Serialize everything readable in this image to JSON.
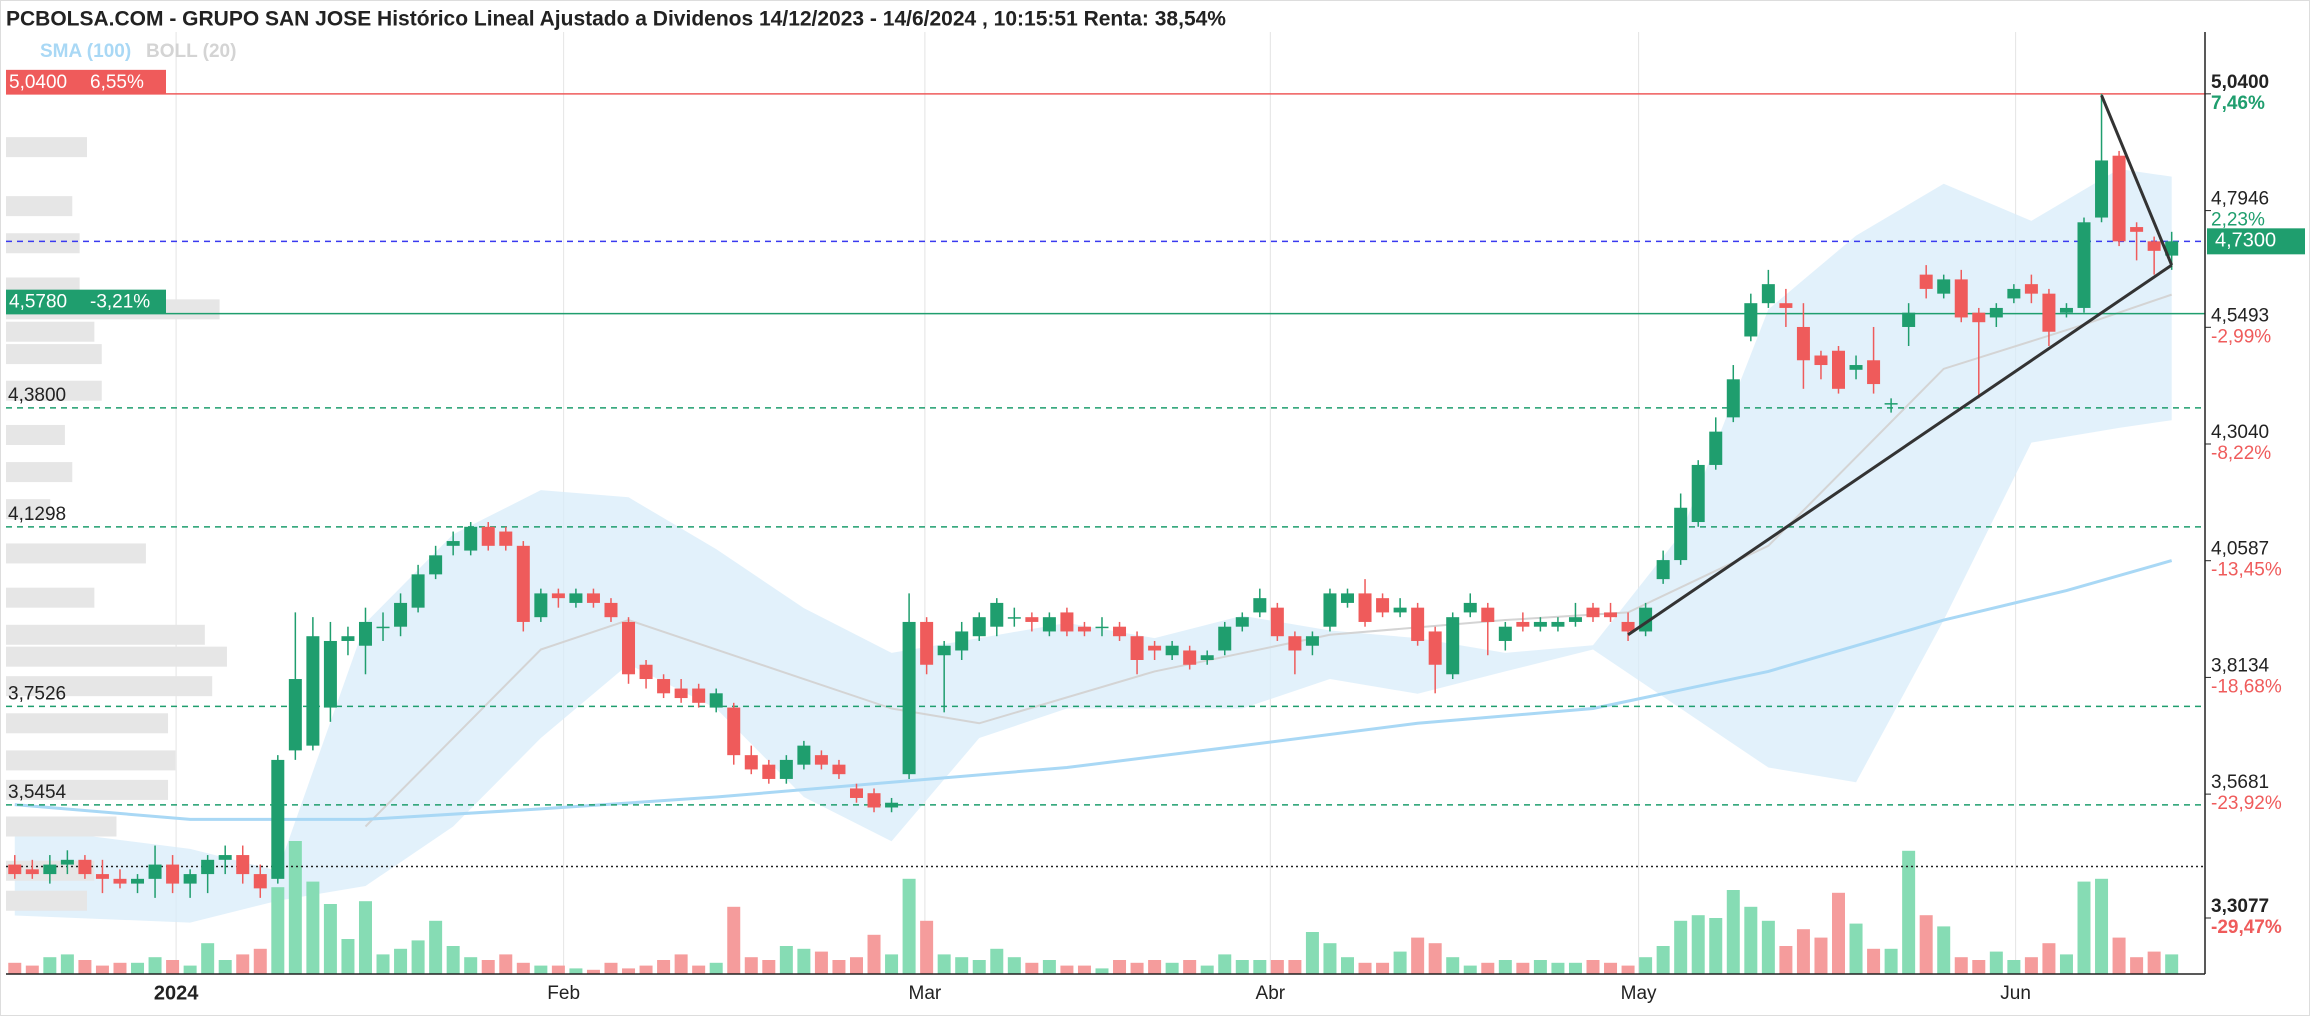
{
  "chart_data": {
    "type": "candlestick",
    "title": "PCBOLSA.COM - GRUPO SAN JOSE Histórico Lineal Ajustado a Dividenos 14/12/2023 - 14/6/2024 , 10:15:51 Renta: 38,54%",
    "legend": [
      "SMA (100)",
      "BOLL (20)"
    ],
    "colors": {
      "up": "#1f9e6e",
      "down": "#ef5b5b",
      "vol_up": "#86dcb4",
      "vol_down": "#f59c9c",
      "sma": "#a9d8f5",
      "band": "#d8ecfa",
      "band_mid": "#d4d4d4",
      "profile": "#e6e6e6",
      "trend": "#333333"
    },
    "xlim": [
      -0.5,
      124.9
    ],
    "ylim": [
      3.19,
      5.17
    ],
    "xticks": [
      {
        "value": 9.2,
        "label": "2024"
      },
      {
        "value": 31.3,
        "label": "Feb"
      },
      {
        "value": 51.9,
        "label": "Mar"
      },
      {
        "value": 71.6,
        "label": "Abr"
      },
      {
        "value": 92.6,
        "label": "May"
      },
      {
        "value": 114.1,
        "label": "Jun"
      }
    ],
    "yticks": [
      {
        "value": 5.04,
        "label": "5,0400"
      },
      {
        "value": 4.7946,
        "label": "4,7946"
      },
      {
        "value": 4.5493,
        "label": "4,5493"
      },
      {
        "value": 4.304,
        "label": "4,3040"
      },
      {
        "value": 4.0587,
        "label": "4,0587"
      },
      {
        "value": 3.8134,
        "label": "3,8134"
      },
      {
        "value": 3.5681,
        "label": "3,5681"
      },
      {
        "value": 3.3077,
        "label": "3,3077"
      }
    ],
    "ytick_pct_labels": [
      "7,46%",
      "2,23%",
      "-2,99%",
      "-8,22%",
      "-13,45%",
      "-18,68%",
      "-23,92%",
      "-29,47%"
    ],
    "last_price": {
      "value": 4.73,
      "label": "4,7300"
    },
    "levels": [
      {
        "value": 5.04,
        "label": "5,0400",
        "pct": "6,55%",
        "color": "#ef5b5b",
        "style": "solid",
        "box": true
      },
      {
        "value": 4.73,
        "color": "#3a3af0",
        "style": "dashed"
      },
      {
        "value": 4.578,
        "label": "4,5780",
        "pct": "-3,21%",
        "color": "#1f9e6e",
        "style": "solid",
        "box": true
      },
      {
        "value": 4.38,
        "label": "4,3800",
        "color": "#1f9e6e",
        "style": "dashed"
      },
      {
        "value": 4.1298,
        "label": "4,1298",
        "color": "#1f9e6e",
        "style": "dashed"
      },
      {
        "value": 3.7526,
        "label": "3,7526",
        "color": "#1f9e6e",
        "style": "dashed"
      },
      {
        "value": 3.5454,
        "label": "3,5454",
        "color": "#1f9e6e",
        "style": "dashed"
      },
      {
        "value": 3.416,
        "color": "#222222",
        "style": "dotted"
      }
    ],
    "ohlc": [
      [
        3.42,
        3.44,
        3.39,
        3.4
      ],
      [
        3.41,
        3.43,
        3.39,
        3.4
      ],
      [
        3.4,
        3.44,
        3.38,
        3.42
      ],
      [
        3.42,
        3.45,
        3.4,
        3.43
      ],
      [
        3.43,
        3.44,
        3.39,
        3.4
      ],
      [
        3.4,
        3.43,
        3.36,
        3.39
      ],
      [
        3.39,
        3.41,
        3.37,
        3.38
      ],
      [
        3.38,
        3.4,
        3.36,
        3.39
      ],
      [
        3.39,
        3.46,
        3.35,
        3.42
      ],
      [
        3.42,
        3.44,
        3.36,
        3.38
      ],
      [
        3.38,
        3.41,
        3.35,
        3.4
      ],
      [
        3.4,
        3.44,
        3.36,
        3.43
      ],
      [
        3.43,
        3.46,
        3.4,
        3.44
      ],
      [
        3.44,
        3.46,
        3.38,
        3.4
      ],
      [
        3.4,
        3.42,
        3.35,
        3.37
      ],
      [
        3.39,
        3.65,
        3.38,
        3.64
      ],
      [
        3.66,
        3.95,
        3.64,
        3.81
      ],
      [
        3.67,
        3.94,
        3.66,
        3.9
      ],
      [
        3.75,
        3.93,
        3.72,
        3.89
      ],
      [
        3.89,
        3.92,
        3.86,
        3.9
      ],
      [
        3.88,
        3.96,
        3.82,
        3.93
      ],
      [
        3.92,
        3.95,
        3.89,
        3.92
      ],
      [
        3.92,
        3.99,
        3.9,
        3.97
      ],
      [
        3.96,
        4.05,
        3.95,
        4.03
      ],
      [
        4.03,
        4.09,
        4.02,
        4.07
      ],
      [
        4.09,
        4.12,
        4.07,
        4.1
      ],
      [
        4.08,
        4.14,
        4.07,
        4.13
      ],
      [
        4.13,
        4.14,
        4.08,
        4.09
      ],
      [
        4.12,
        4.13,
        4.08,
        4.09
      ],
      [
        4.09,
        4.1,
        3.91,
        3.93
      ],
      [
        3.94,
        4.0,
        3.93,
        3.99
      ],
      [
        3.99,
        4.0,
        3.96,
        3.98
      ],
      [
        3.97,
        4.0,
        3.96,
        3.99
      ],
      [
        3.99,
        4.0,
        3.96,
        3.97
      ],
      [
        3.97,
        3.98,
        3.93,
        3.94
      ],
      [
        3.93,
        3.94,
        3.8,
        3.82
      ],
      [
        3.84,
        3.85,
        3.79,
        3.81
      ],
      [
        3.81,
        3.82,
        3.77,
        3.78
      ],
      [
        3.79,
        3.81,
        3.76,
        3.77
      ],
      [
        3.79,
        3.8,
        3.75,
        3.76
      ],
      [
        3.75,
        3.79,
        3.74,
        3.78
      ],
      [
        3.75,
        3.76,
        3.63,
        3.65
      ],
      [
        3.65,
        3.67,
        3.61,
        3.62
      ],
      [
        3.63,
        3.64,
        3.59,
        3.6
      ],
      [
        3.6,
        3.65,
        3.59,
        3.64
      ],
      [
        3.63,
        3.68,
        3.62,
        3.67
      ],
      [
        3.65,
        3.66,
        3.62,
        3.63
      ],
      [
        3.63,
        3.64,
        3.6,
        3.61
      ],
      [
        3.58,
        3.59,
        3.55,
        3.56
      ],
      [
        3.57,
        3.58,
        3.53,
        3.54
      ],
      [
        3.54,
        3.56,
        3.53,
        3.55
      ],
      [
        3.61,
        3.99,
        3.6,
        3.93
      ],
      [
        3.93,
        3.94,
        3.82,
        3.84
      ],
      [
        3.86,
        3.89,
        3.74,
        3.88
      ],
      [
        3.87,
        3.93,
        3.85,
        3.91
      ],
      [
        3.9,
        3.95,
        3.89,
        3.94
      ],
      [
        3.92,
        3.98,
        3.9,
        3.97
      ],
      [
        3.94,
        3.96,
        3.92,
        3.94
      ],
      [
        3.94,
        3.95,
        3.91,
        3.93
      ],
      [
        3.91,
        3.95,
        3.9,
        3.94
      ],
      [
        3.95,
        3.96,
        3.9,
        3.91
      ],
      [
        3.92,
        3.93,
        3.9,
        3.91
      ],
      [
        3.92,
        3.94,
        3.9,
        3.92
      ],
      [
        3.92,
        3.93,
        3.89,
        3.9
      ],
      [
        3.9,
        3.91,
        3.82,
        3.85
      ],
      [
        3.88,
        3.89,
        3.85,
        3.87
      ],
      [
        3.86,
        3.89,
        3.85,
        3.88
      ],
      [
        3.87,
        3.88,
        3.83,
        3.84
      ],
      [
        3.85,
        3.87,
        3.84,
        3.86
      ],
      [
        3.87,
        3.93,
        3.86,
        3.92
      ],
      [
        3.92,
        3.95,
        3.91,
        3.94
      ],
      [
        3.95,
        4.0,
        3.94,
        3.98
      ],
      [
        3.96,
        3.97,
        3.89,
        3.9
      ],
      [
        3.9,
        3.91,
        3.82,
        3.87
      ],
      [
        3.88,
        3.91,
        3.86,
        3.9
      ],
      [
        3.92,
        4.0,
        3.91,
        3.99
      ],
      [
        3.97,
        4.0,
        3.96,
        3.99
      ],
      [
        3.99,
        4.02,
        3.92,
        3.93
      ],
      [
        3.98,
        3.99,
        3.94,
        3.95
      ],
      [
        3.95,
        3.98,
        3.94,
        3.96
      ],
      [
        3.96,
        3.97,
        3.88,
        3.89
      ],
      [
        3.91,
        3.92,
        3.78,
        3.84
      ],
      [
        3.82,
        3.95,
        3.81,
        3.94
      ],
      [
        3.95,
        3.99,
        3.94,
        3.97
      ],
      [
        3.96,
        3.97,
        3.86,
        3.93
      ],
      [
        3.89,
        3.93,
        3.87,
        3.92
      ],
      [
        3.93,
        3.95,
        3.91,
        3.92
      ],
      [
        3.92,
        3.94,
        3.91,
        3.93
      ],
      [
        3.92,
        3.94,
        3.91,
        3.93
      ],
      [
        3.93,
        3.97,
        3.92,
        3.94
      ],
      [
        3.96,
        3.97,
        3.93,
        3.94
      ],
      [
        3.95,
        3.97,
        3.93,
        3.94
      ],
      [
        3.93,
        3.95,
        3.89,
        3.91
      ],
      [
        3.91,
        3.97,
        3.9,
        3.96
      ],
      [
        4.02,
        4.08,
        4.01,
        4.06
      ],
      [
        4.06,
        4.2,
        4.05,
        4.17
      ],
      [
        4.14,
        4.27,
        4.13,
        4.26
      ],
      [
        4.26,
        4.36,
        4.25,
        4.33
      ],
      [
        4.36,
        4.47,
        4.35,
        4.44
      ],
      [
        4.53,
        4.62,
        4.52,
        4.6
      ],
      [
        4.6,
        4.67,
        4.59,
        4.64
      ],
      [
        4.6,
        4.63,
        4.55,
        4.59
      ],
      [
        4.55,
        4.6,
        4.42,
        4.48
      ],
      [
        4.49,
        4.5,
        4.44,
        4.47
      ],
      [
        4.5,
        4.51,
        4.41,
        4.42
      ],
      [
        4.46,
        4.49,
        4.44,
        4.47
      ],
      [
        4.48,
        4.55,
        4.41,
        4.43
      ],
      [
        4.39,
        4.4,
        4.37,
        4.39
      ],
      [
        4.55,
        4.6,
        4.51,
        4.58
      ],
      [
        4.66,
        4.68,
        4.61,
        4.63
      ],
      [
        4.62,
        4.66,
        4.61,
        4.65
      ],
      [
        4.65,
        4.67,
        4.56,
        4.57
      ],
      [
        4.58,
        4.59,
        4.4,
        4.56
      ],
      [
        4.57,
        4.6,
        4.55,
        4.59
      ],
      [
        4.61,
        4.64,
        4.6,
        4.63
      ],
      [
        4.64,
        4.66,
        4.6,
        4.62
      ],
      [
        4.62,
        4.63,
        4.51,
        4.54
      ],
      [
        4.58,
        4.6,
        4.57,
        4.59
      ],
      [
        4.59,
        4.78,
        4.58,
        4.77
      ],
      [
        4.78,
        5.04,
        4.77,
        4.9
      ],
      [
        4.91,
        4.92,
        4.72,
        4.73
      ],
      [
        4.76,
        4.77,
        4.69,
        4.75
      ],
      [
        4.73,
        4.74,
        4.66,
        4.71
      ],
      [
        4.7,
        4.75,
        4.67,
        4.73
      ]
    ],
    "volume": [
      8,
      6,
      12,
      14,
      10,
      6,
      8,
      8,
      12,
      10,
      6,
      22,
      10,
      14,
      18,
      62,
      95,
      66,
      50,
      25,
      52,
      14,
      18,
      24,
      38,
      20,
      12,
      10,
      14,
      8,
      6,
      6,
      4,
      3,
      8,
      4,
      6,
      10,
      14,
      6,
      8,
      48,
      12,
      10,
      20,
      18,
      16,
      10,
      12,
      28,
      14,
      68,
      38,
      14,
      12,
      10,
      18,
      12,
      8,
      10,
      6,
      6,
      4,
      10,
      8,
      10,
      8,
      10,
      6,
      14,
      10,
      10,
      10,
      10,
      30,
      22,
      12,
      8,
      8,
      16,
      26,
      22,
      12,
      6,
      8,
      10,
      8,
      10,
      8,
      8,
      10,
      8,
      6,
      12,
      20,
      38,
      42,
      40,
      60,
      48,
      38,
      20,
      32,
      26,
      58,
      36,
      18,
      18,
      88,
      42,
      34,
      12,
      10,
      16,
      10,
      12,
      22,
      14,
      66,
      68,
      26,
      12,
      16,
      14
    ],
    "sma": {
      "x": [
        0,
        10,
        20,
        30,
        40,
        50,
        60,
        70,
        80,
        90,
        100,
        110,
        117,
        123
      ],
      "values": [
        3.546,
        3.515,
        3.515,
        3.537,
        3.562,
        3.593,
        3.624,
        3.67,
        3.717,
        3.748,
        3.826,
        3.934,
        3.996,
        4.059
      ]
    },
    "bollinger": {
      "x": [
        0,
        10,
        15,
        20,
        25,
        30,
        35,
        40,
        45,
        50,
        55,
        60,
        65,
        70,
        75,
        80,
        85,
        90,
        95,
        100,
        105,
        110,
        115,
        120,
        123
      ],
      "upper": [
        3.5,
        3.453,
        3.407,
        3.928,
        4.114,
        4.207,
        4.192,
        4.083,
        3.959,
        3.865,
        3.896,
        3.928,
        3.896,
        3.943,
        3.912,
        3.896,
        3.865,
        3.881,
        4.114,
        4.587,
        4.742,
        4.851,
        4.773,
        4.882,
        4.866
      ],
      "lower": [
        3.313,
        3.298,
        3.344,
        3.375,
        3.5,
        3.686,
        3.841,
        3.748,
        3.562,
        3.469,
        3.686,
        3.748,
        3.748,
        3.748,
        3.81,
        3.779,
        3.826,
        3.872,
        3.748,
        3.624,
        3.593,
        3.934,
        4.307,
        4.338,
        4.354
      ],
      "middle_x": [
        20,
        30,
        35,
        45,
        50,
        55,
        65,
        75,
        85,
        92,
        100,
        110,
        118,
        123
      ],
      "middle": [
        3.5,
        3.872,
        3.934,
        3.81,
        3.748,
        3.717,
        3.826,
        3.903,
        3.934,
        3.95,
        4.09,
        4.462,
        4.555,
        4.618
      ]
    },
    "volume_profile": {
      "prices": [
        4.928,
        4.804,
        4.726,
        4.633,
        4.587,
        4.54,
        4.493,
        4.416,
        4.323,
        4.245,
        4.167,
        4.074,
        3.981,
        3.903,
        3.857,
        3.795,
        3.717,
        3.639,
        3.577,
        3.5,
        3.407,
        3.344
      ],
      "values": [
        55,
        45,
        50,
        50,
        145,
        60,
        65,
        65,
        40,
        45,
        30,
        95,
        60,
        135,
        150,
        140,
        110,
        115,
        110,
        75,
        60,
        55
      ]
    },
    "trendlines": [
      {
        "x": [
          92,
          123
        ],
        "values": [
          3.903,
          4.68
        ]
      },
      {
        "x": [
          119,
          123
        ],
        "values": [
          5.037,
          4.68
        ]
      }
    ]
  }
}
